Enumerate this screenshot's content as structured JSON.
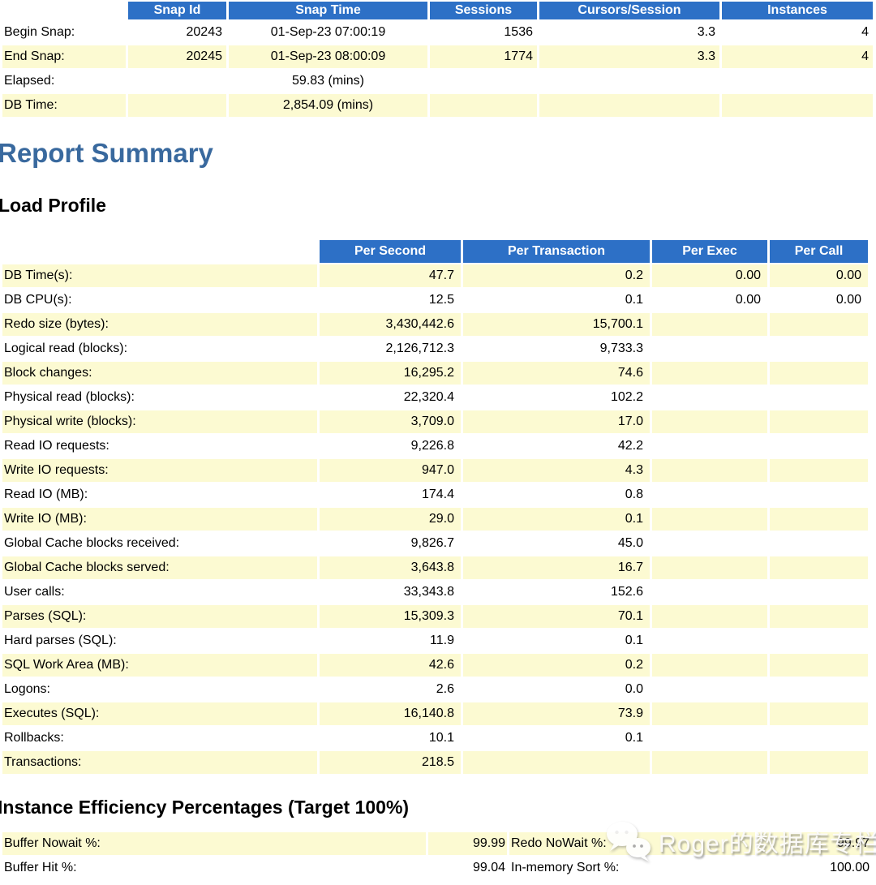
{
  "colors": {
    "header_blue": "#2d70c6",
    "row_yellow": "#fcfad2",
    "heading_blue": "#39699e"
  },
  "snapshot_table": {
    "columns": [
      "",
      "Snap Id",
      "Snap Time",
      "Sessions",
      "Cursors/Session",
      "Instances"
    ],
    "rows": [
      {
        "label": "Begin Snap:",
        "snap_id": "20243",
        "snap_time": "01-Sep-23 07:00:19",
        "sessions": "1536",
        "cursors_per_session": "3.3",
        "instances": "4"
      },
      {
        "label": "End Snap:",
        "snap_id": "20245",
        "snap_time": "01-Sep-23 08:00:09",
        "sessions": "1774",
        "cursors_per_session": "3.3",
        "instances": "4"
      },
      {
        "label": "Elapsed:",
        "snap_id": "",
        "snap_time": "59.83 (mins)",
        "sessions": "",
        "cursors_per_session": "",
        "instances": ""
      },
      {
        "label": "DB Time:",
        "snap_id": "",
        "snap_time": "2,854.09 (mins)",
        "sessions": "",
        "cursors_per_session": "",
        "instances": ""
      }
    ]
  },
  "report_summary_heading": "Report Summary",
  "load_profile": {
    "heading": "Load Profile",
    "columns": [
      "",
      "Per Second",
      "Per Transaction",
      "Per Exec",
      "Per Call"
    ],
    "rows": [
      [
        "DB Time(s):",
        "47.7",
        "0.2",
        "0.00",
        "0.00"
      ],
      [
        "DB CPU(s):",
        "12.5",
        "0.1",
        "0.00",
        "0.00"
      ],
      [
        "Redo size (bytes):",
        "3,430,442.6",
        "15,700.1",
        "",
        ""
      ],
      [
        "Logical read (blocks):",
        "2,126,712.3",
        "9,733.3",
        "",
        ""
      ],
      [
        "Block changes:",
        "16,295.2",
        "74.6",
        "",
        ""
      ],
      [
        "Physical read (blocks):",
        "22,320.4",
        "102.2",
        "",
        ""
      ],
      [
        "Physical write (blocks):",
        "3,709.0",
        "17.0",
        "",
        ""
      ],
      [
        "Read IO requests:",
        "9,226.8",
        "42.2",
        "",
        ""
      ],
      [
        "Write IO requests:",
        "947.0",
        "4.3",
        "",
        ""
      ],
      [
        "Read IO (MB):",
        "174.4",
        "0.8",
        "",
        ""
      ],
      [
        "Write IO (MB):",
        "29.0",
        "0.1",
        "",
        ""
      ],
      [
        "Global Cache blocks received:",
        "9,826.7",
        "45.0",
        "",
        ""
      ],
      [
        "Global Cache blocks served:",
        "3,643.8",
        "16.7",
        "",
        ""
      ],
      [
        "User calls:",
        "33,343.8",
        "152.6",
        "",
        ""
      ],
      [
        "Parses (SQL):",
        "15,309.3",
        "70.1",
        "",
        ""
      ],
      [
        "Hard parses (SQL):",
        "11.9",
        "0.1",
        "",
        ""
      ],
      [
        "SQL Work Area (MB):",
        "42.6",
        "0.2",
        "",
        ""
      ],
      [
        "Logons:",
        "2.6",
        "0.0",
        "",
        ""
      ],
      [
        "Executes (SQL):",
        "16,140.8",
        "73.9",
        "",
        ""
      ],
      [
        "Rollbacks:",
        "10.1",
        "0.1",
        "",
        ""
      ],
      [
        "Transactions:",
        "218.5",
        "",
        "",
        ""
      ]
    ]
  },
  "instance_efficiency": {
    "heading": "Instance Efficiency Percentages (Target 100%)",
    "rows": [
      {
        "label1": "Buffer Nowait %:",
        "value1": "99.99",
        "label2": "Redo NoWait %:",
        "value2": "99.97"
      },
      {
        "label1": "Buffer Hit %:",
        "value1": "99.04",
        "label2": "In-memory Sort %:",
        "value2": "100.00"
      }
    ]
  },
  "watermark": {
    "icon": "wechat-icon",
    "text": "Roger的数据库专栏"
  }
}
